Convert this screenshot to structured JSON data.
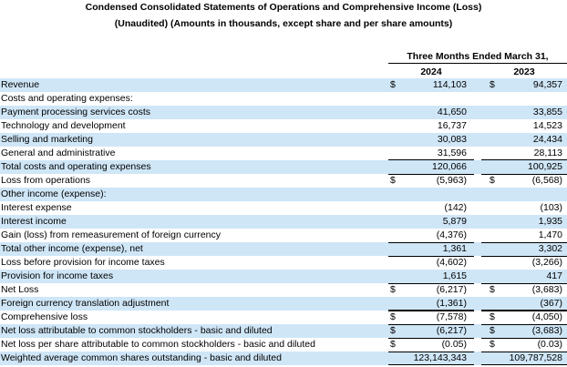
{
  "header": {
    "title": "Condensed Consolidated Statements of Operations and Comprehensive Income (Loss)",
    "subtitle": "(Unaudited) (Amounts in thousands, except share and per share amounts)",
    "period": "Three Months Ended March 31,",
    "year1": "2024",
    "year2": "2023"
  },
  "rows": [
    {
      "label": "Revenue",
      "d1": "$",
      "v1": "114,103",
      "d2": "$",
      "v2": "94,357"
    },
    {
      "label": "Costs and operating expenses:",
      "d1": "",
      "v1": "",
      "d2": "",
      "v2": ""
    },
    {
      "label": "Payment processing services costs",
      "d1": "",
      "v1": "41,650",
      "d2": "",
      "v2": "33,855"
    },
    {
      "label": "Technology and development",
      "d1": "",
      "v1": "16,737",
      "d2": "",
      "v2": "14,523"
    },
    {
      "label": "Selling and marketing",
      "d1": "",
      "v1": "30,083",
      "d2": "",
      "v2": "24,434"
    },
    {
      "label": "General and administrative",
      "d1": "",
      "v1": "31,596",
      "d2": "",
      "v2": "28,113"
    },
    {
      "label": "Total costs and operating expenses",
      "d1": "",
      "v1": "120,066",
      "d2": "",
      "v2": "100,925"
    },
    {
      "label": "Loss from operations",
      "d1": "$",
      "v1": "(5,963)",
      "d2": "$",
      "v2": "(6,568)"
    },
    {
      "label": "Other income (expense):",
      "d1": "",
      "v1": "",
      "d2": "",
      "v2": ""
    },
    {
      "label": "Interest expense",
      "d1": "",
      "v1": "(142)",
      "d2": "",
      "v2": "(103)"
    },
    {
      "label": "Interest income",
      "d1": "",
      "v1": "5,879",
      "d2": "",
      "v2": "1,935"
    },
    {
      "label": "Gain (loss) from remeasurement of foreign currency",
      "d1": "",
      "v1": "(4,376)",
      "d2": "",
      "v2": "1,470"
    },
    {
      "label": "Total other income (expense), net",
      "d1": "",
      "v1": "1,361",
      "d2": "",
      "v2": "3,302"
    },
    {
      "label": "Loss before provision for income taxes",
      "d1": "",
      "v1": "(4,602)",
      "d2": "",
      "v2": "(3,266)"
    },
    {
      "label": "Provision for income taxes",
      "d1": "",
      "v1": "1,615",
      "d2": "",
      "v2": "417"
    },
    {
      "label": "Net Loss",
      "d1": "$",
      "v1": "(6,217)",
      "d2": "$",
      "v2": "(3,683)"
    },
    {
      "label": "Foreign currency translation adjustment",
      "d1": "",
      "v1": "(1,361)",
      "d2": "",
      "v2": "(367)"
    },
    {
      "label": "Comprehensive loss",
      "d1": "$",
      "v1": "(7,578)",
      "d2": "$",
      "v2": "(4,050)"
    },
    {
      "label": "Net loss attributable to common stockholders - basic and diluted",
      "d1": "$",
      "v1": "(6,217)",
      "d2": "$",
      "v2": "(3,683)"
    },
    {
      "label": "Net loss per share attributable to common stockholders - basic and diluted",
      "d1": "$",
      "v1": "(0.05)",
      "d2": "$",
      "v2": "(0.03)"
    },
    {
      "label": "Weighted average common shares outstanding - basic and diluted",
      "d1": "",
      "v1": "123,143,343",
      "d2": "",
      "v2": "109,787,528"
    }
  ]
}
